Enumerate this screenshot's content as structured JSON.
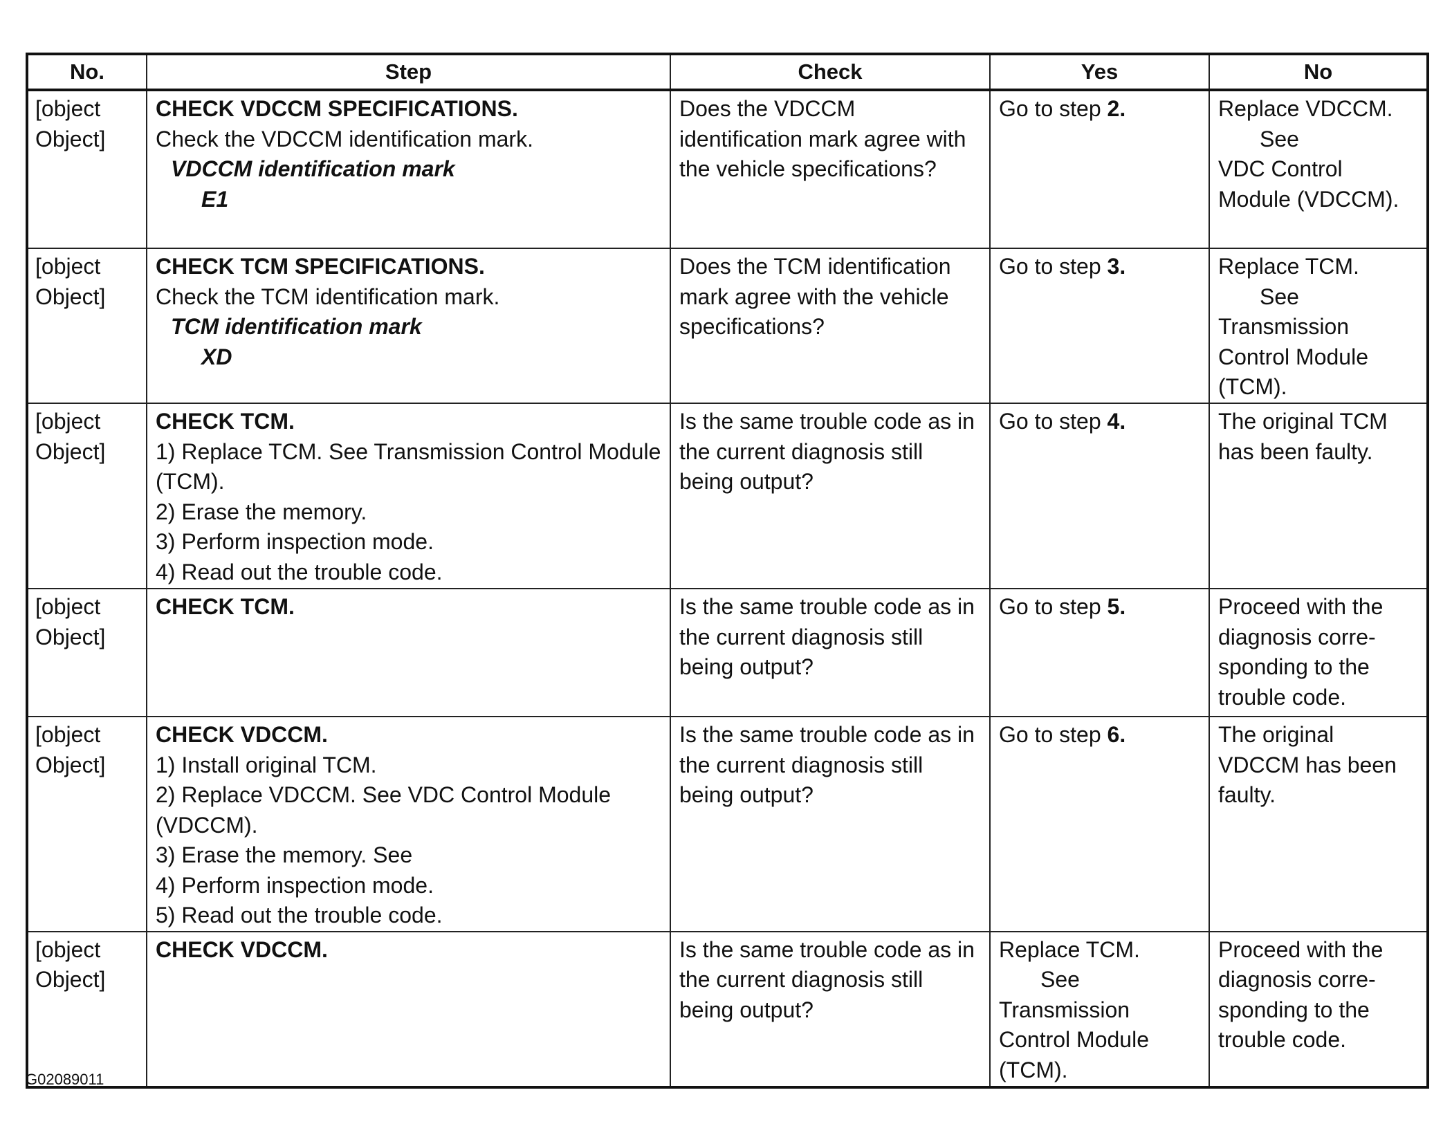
{
  "headers": [
    "No.",
    "Step",
    "Check",
    "Yes",
    "No"
  ],
  "rows": [
    {
      "no": {
        "lines": [
          "Replace VDCCM.",
          "See",
          "VDC Control Module (VDCCM)."
        ]
      },
      "step": {
        "title": "CHECK VDCCM SPECIFICATIONS.",
        "lines": [
          "Check the VDCCM identification mark."
        ],
        "spec_label": "VDCCM identification mark",
        "spec_value": "E1"
      },
      "check": "Does the VDCCM identification mark agree with the vehicle specifications?",
      "yes": {
        "text": "Go to step",
        "step": "2."
      }
    },
    {
      "no": {
        "lines": [
          "Replace TCM.",
          "See",
          "Transmission Control Module (TCM)."
        ]
      },
      "step": {
        "title": "CHECK TCM SPECIFICATIONS.",
        "lines": [
          "Check the TCM identification mark."
        ],
        "spec_label": "TCM identification mark",
        "spec_value": "XD"
      },
      "check": "Does the TCM identification mark agree with the vehicle specifications?",
      "yes": {
        "text": "Go to step",
        "step": "3."
      }
    },
    {
      "no": {
        "lines": [
          "The original TCM has been faulty."
        ]
      },
      "step": {
        "title": "CHECK TCM.",
        "lines": [
          "1) Replace TCM. See Transmission Control Module (TCM).",
          "2) Erase the memory.",
          "3) Perform inspection mode.",
          "4) Read out the trouble code."
        ]
      },
      "check": "Is the same trouble code as in the current diagnosis still being output?",
      "yes": {
        "text": "Go to step",
        "step": "4."
      }
    },
    {
      "no": {
        "lines": [
          "Proceed with the diagnosis corre-sponding to the trouble code."
        ]
      },
      "step": {
        "title": "CHECK TCM.",
        "lines": []
      },
      "check": "Is the same trouble code as in the current diagnosis still being output?",
      "yes": {
        "text": "Go to step",
        "step": "5."
      }
    },
    {
      "no": {
        "lines": [
          "The original VDCCM has been faulty."
        ]
      },
      "step": {
        "title": "CHECK VDCCM.",
        "lines": [
          "1) Install original TCM.",
          "2) Replace VDCCM.  See VDC Control Module (VDCCM).",
          "3) Erase the memory.  See",
          "4) Perform inspection mode.",
          "5) Read out the trouble code."
        ]
      },
      "check": "Is the same trouble code as in the current diagnosis still being output?",
      "yes": {
        "text": "Go to step",
        "step": "6."
      }
    },
    {
      "no": {
        "lines": [
          "Proceed with the diagnosis corre-sponding to the trouble code."
        ]
      },
      "step": {
        "title": "CHECK VDCCM.",
        "lines": []
      },
      "check": "Is the same trouble code as in the current diagnosis still being output?",
      "yes": {
        "lines": [
          "Replace TCM.",
          "See",
          "Transmission Control Module (TCM)."
        ]
      }
    }
  ],
  "footer": "G02089011"
}
